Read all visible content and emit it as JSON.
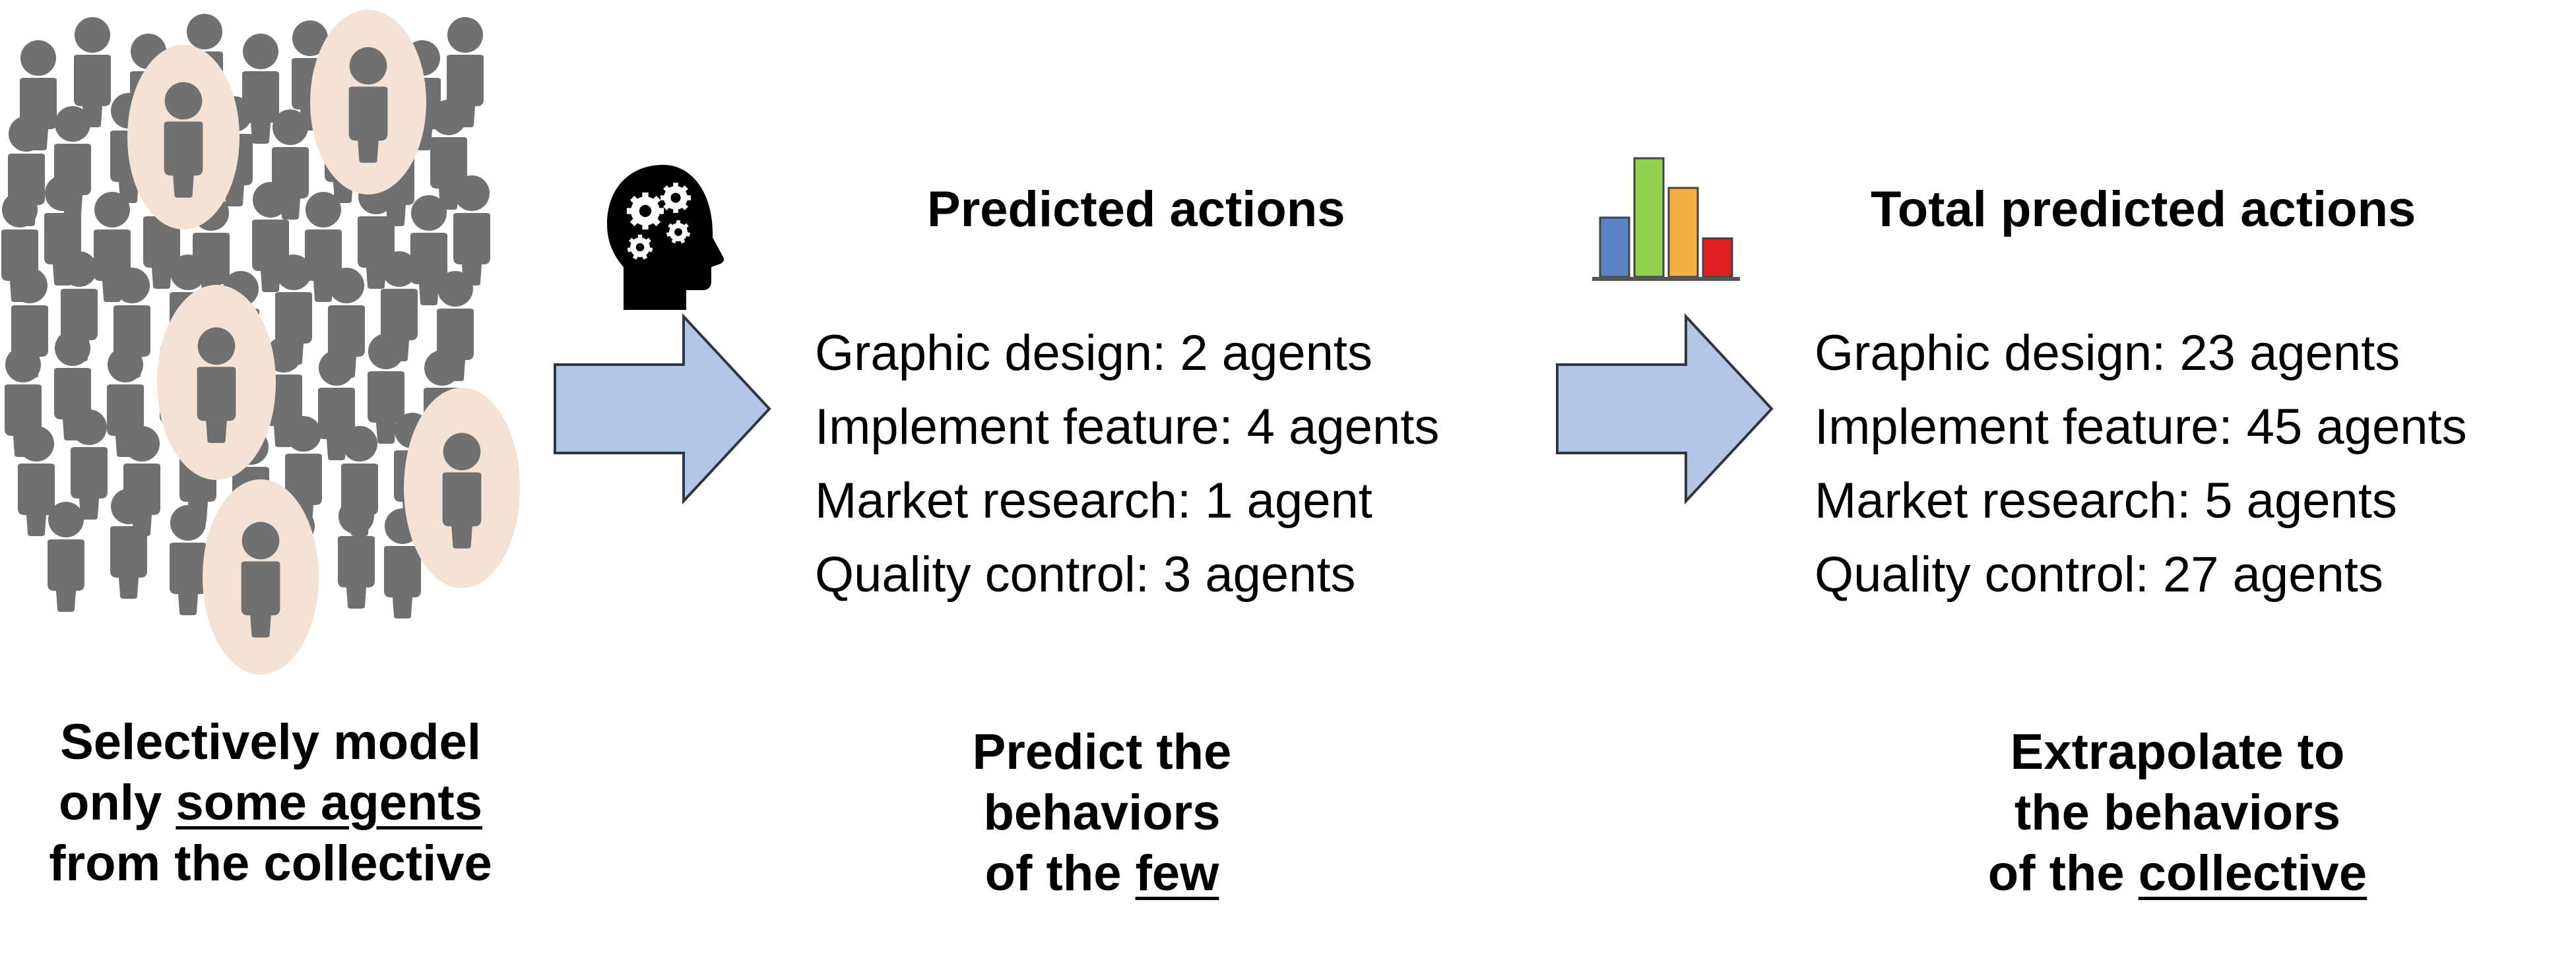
{
  "colors": {
    "person": "#707070",
    "highlight_circle": "#f4e2d4",
    "arrow_fill": "#b4c6e7",
    "arrow_stroke": "#2f3640",
    "bar_blue": "#5b84c7",
    "bar_green": "#92d050",
    "bar_orange": "#f4b042",
    "bar_red": "#e02020",
    "text": "#000000"
  },
  "icons": {
    "crowd": "people-crowd-icon",
    "brain": "head-gears-icon",
    "chart": "bar-chart-icon",
    "arrows": "right-arrow-icon"
  },
  "chart_icon": {
    "type": "bar",
    "values": [
      2,
      4,
      3,
      1.3
    ]
  },
  "predicted": {
    "heading": "Predicted actions",
    "items": [
      "Graphic design: 2 agents",
      "Implement feature: 4 agents",
      "Market research: 1 agent",
      "Quality control: 3 agents"
    ]
  },
  "total": {
    "heading": "Total predicted actions",
    "items": [
      "Graphic design: 23 agents",
      "Implement feature: 45 agents",
      "Market research: 5 agents",
      "Quality control: 27 agents"
    ]
  },
  "captions": {
    "left": {
      "line1": "Selectively model",
      "line2_pre": "only ",
      "line2_u": "some agents",
      "line3": "from the collective"
    },
    "middle": {
      "line1": "Predict the",
      "line2": "behaviors",
      "line3_pre": "of the ",
      "line3_u": "few"
    },
    "right": {
      "line1": "Extrapolate to",
      "line2": "the behaviors",
      "line3_pre": "of the ",
      "line3_u": "collective"
    }
  }
}
